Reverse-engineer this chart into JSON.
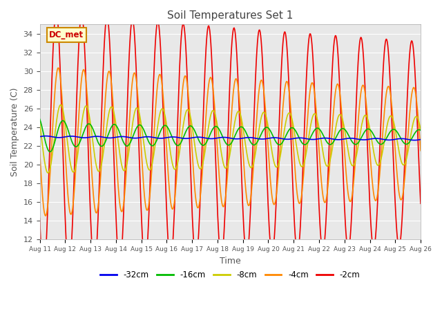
{
  "title": "Soil Temperatures Set 1",
  "xlabel": "Time",
  "ylabel": "Soil Temperature (C)",
  "ylim": [
    12,
    35
  ],
  "yticks": [
    12,
    14,
    16,
    18,
    20,
    22,
    24,
    26,
    28,
    30,
    32,
    34
  ],
  "x_tick_labels": [
    "Aug 11",
    "Aug 12",
    "Aug 13",
    "Aug 14",
    "Aug 15",
    "Aug 16",
    "Aug 17",
    "Aug 18",
    "Aug 19",
    "Aug 20",
    "Aug 21",
    "Aug 22",
    "Aug 23",
    "Aug 24",
    "Aug 25",
    "Aug 26"
  ],
  "series_labels": [
    "-32cm",
    "-16cm",
    "-8cm",
    "-4cm",
    "-2cm"
  ],
  "series_colors": [
    "#0000ee",
    "#00bb00",
    "#cccc00",
    "#ff8800",
    "#ee0000"
  ],
  "legend_label": "DC_met",
  "legend_bg": "#ffffcc",
  "legend_border": "#cc8800",
  "axes_bg": "#e8e8e8",
  "grid_color": "#ffffff",
  "n_points": 720,
  "title_color": "#444444",
  "label_color": "#555555"
}
